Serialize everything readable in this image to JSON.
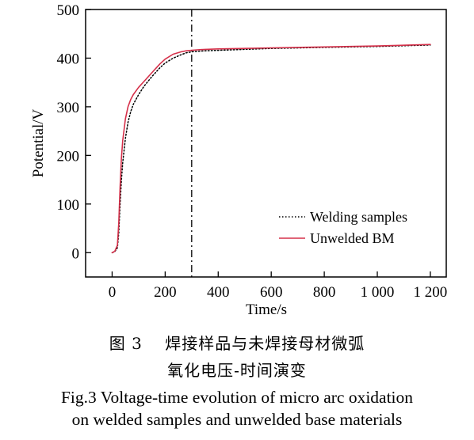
{
  "chart_data": {
    "type": "line",
    "xlabel": "Time/s",
    "ylabel": "Potential/V",
    "xlim": [
      -100,
      1260
    ],
    "ylim": [
      -50,
      500
    ],
    "x_ticks": [
      0,
      200,
      400,
      600,
      800,
      1000,
      1200
    ],
    "x_tick_labels": [
      "0",
      "200",
      "400",
      "600",
      "800",
      "1 000",
      "1 200"
    ],
    "y_ticks": [
      0,
      100,
      200,
      300,
      400,
      500
    ],
    "y_tick_labels": [
      "0",
      "100",
      "200",
      "300",
      "400",
      "500"
    ],
    "grid": false,
    "legend_position": "bottom-right",
    "reference_line": {
      "x": 300,
      "style": "dashed"
    },
    "series": [
      {
        "name": "Welding samples",
        "style": "dotted",
        "color": "#000000",
        "x": [
          0,
          10,
          20,
          25,
          30,
          35,
          40,
          50,
          60,
          70,
          80,
          100,
          120,
          150,
          180,
          200,
          230,
          260,
          280,
          300,
          320,
          350,
          400,
          500,
          600,
          800,
          1000,
          1200
        ],
        "y": [
          0,
          2,
          10,
          40,
          100,
          150,
          185,
          235,
          268,
          290,
          305,
          325,
          342,
          362,
          380,
          390,
          400,
          407,
          411,
          413,
          414,
          415,
          416,
          418,
          420,
          422,
          424,
          427
        ]
      },
      {
        "name": "Unwelded BM",
        "style": "solid",
        "color": "#d6304a",
        "x": [
          0,
          10,
          20,
          25,
          30,
          35,
          40,
          50,
          60,
          70,
          80,
          100,
          120,
          150,
          180,
          200,
          230,
          260,
          280,
          300,
          320,
          350,
          400,
          500,
          600,
          800,
          1000,
          1200
        ],
        "y": [
          0,
          3,
          15,
          60,
          135,
          195,
          230,
          275,
          300,
          315,
          325,
          340,
          352,
          370,
          388,
          398,
          408,
          413,
          415,
          416,
          417,
          418,
          419,
          420,
          421,
          423,
          425,
          428
        ]
      }
    ]
  },
  "caption": {
    "cn_line1": "图 3　 焊接样品与未焊接母材微弧",
    "cn_line2": "氧化电压-时间演变",
    "en_line1": "Fig.3 Voltage-time evolution of micro arc oxidation",
    "en_line2": "on welded samples and unwelded base materials"
  }
}
